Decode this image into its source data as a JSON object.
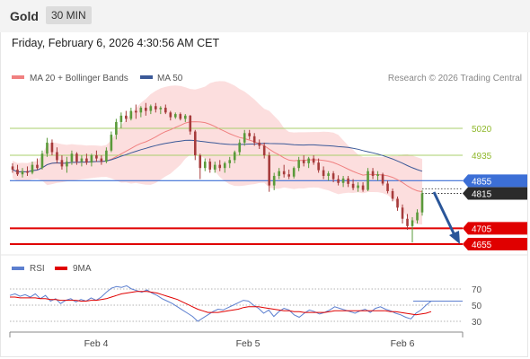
{
  "header": {
    "title": "Gold",
    "timeframe": "30 MIN"
  },
  "date_text": "Friday, February 6, 2026 4:30:56 AM CET",
  "legend": {
    "ma20": "MA 20 + Bollinger Bands",
    "ma50": "MA 50",
    "credit": "Research © 2026 Trading Central"
  },
  "colors": {
    "ma20": "#f08080",
    "bollinger": "#fbd3d3",
    "ma50": "#3b5998",
    "bull": "#5a9a3a",
    "bear": "#a63b3b",
    "resistance": "#a8cf6b",
    "support": "#e00000",
    "pivot": "#3c6fd6",
    "arrow": "#2a5699",
    "rsi": "#5c7fcf",
    "rsi_ma": "#e00000"
  },
  "chart_data": {
    "type": "candlestick",
    "y_range": [
      4590,
      5150
    ],
    "x_labels": [
      "Feb 4",
      "Feb 5",
      "Feb 6"
    ],
    "levels": [
      {
        "value": 5020,
        "label": "5020",
        "kind": "resistance"
      },
      {
        "value": 4935,
        "label": "4935",
        "kind": "resistance"
      },
      {
        "value": 4855,
        "label": "4855",
        "kind": "pivot"
      },
      {
        "value": 4815,
        "label": "4815",
        "kind": "current"
      },
      {
        "value": 4705,
        "label": "4705",
        "kind": "support"
      },
      {
        "value": 4655,
        "label": "4655",
        "kind": "support"
      }
    ],
    "ohlc": [
      [
        4900,
        4910,
        4880,
        4890
      ],
      [
        4890,
        4905,
        4870,
        4875
      ],
      [
        4875,
        4895,
        4865,
        4885
      ],
      [
        4885,
        4900,
        4870,
        4880
      ],
      [
        4880,
        4915,
        4875,
        4905
      ],
      [
        4905,
        4925,
        4890,
        4895
      ],
      [
        4895,
        4950,
        4890,
        4940
      ],
      [
        4940,
        4990,
        4930,
        4975
      ],
      [
        4975,
        4985,
        4935,
        4945
      ],
      [
        4945,
        4960,
        4910,
        4920
      ],
      [
        4920,
        4935,
        4890,
        4900
      ],
      [
        4900,
        4930,
        4880,
        4915
      ],
      [
        4915,
        4950,
        4905,
        4940
      ],
      [
        4940,
        4945,
        4905,
        4915
      ],
      [
        4915,
        4935,
        4900,
        4925
      ],
      [
        4925,
        4940,
        4905,
        4912
      ],
      [
        4912,
        4940,
        4900,
        4935
      ],
      [
        4935,
        4950,
        4915,
        4925
      ],
      [
        4925,
        4935,
        4905,
        4915
      ],
      [
        4915,
        4960,
        4910,
        4950
      ],
      [
        4950,
        5010,
        4945,
        5000
      ],
      [
        5000,
        5050,
        4985,
        5040
      ],
      [
        5040,
        5070,
        5020,
        5060
      ],
      [
        5060,
        5075,
        5040,
        5050
      ],
      [
        5050,
        5085,
        5045,
        5075
      ],
      [
        5075,
        5095,
        5050,
        5070
      ],
      [
        5070,
        5090,
        5055,
        5085
      ],
      [
        5085,
        5100,
        5060,
        5075
      ],
      [
        5075,
        5095,
        5065,
        5090
      ],
      [
        5090,
        5100,
        5070,
        5080
      ],
      [
        5080,
        5090,
        5065,
        5085
      ],
      [
        5085,
        5095,
        5065,
        5070
      ],
      [
        5070,
        5075,
        5045,
        5055
      ],
      [
        5055,
        5070,
        5050,
        5065
      ],
      [
        5065,
        5070,
        5045,
        5050
      ],
      [
        5050,
        5065,
        5040,
        5060
      ],
      [
        5060,
        5062,
        5000,
        5010
      ],
      [
        5010,
        5015,
        4920,
        4935
      ],
      [
        4935,
        4940,
        4860,
        4895
      ],
      [
        4895,
        4925,
        4885,
        4915
      ],
      [
        4915,
        4925,
        4880,
        4890
      ],
      [
        4890,
        4915,
        4880,
        4905
      ],
      [
        4905,
        4920,
        4885,
        4895
      ],
      [
        4895,
        4915,
        4880,
        4910
      ],
      [
        4910,
        4930,
        4895,
        4920
      ],
      [
        4920,
        4950,
        4910,
        4945
      ],
      [
        4945,
        4985,
        4935,
        4975
      ],
      [
        4975,
        5015,
        4965,
        5005
      ],
      [
        5005,
        5015,
        4985,
        4995
      ],
      [
        4995,
        5005,
        4965,
        4975
      ],
      [
        4975,
        4985,
        4955,
        4965
      ],
      [
        4965,
        4975,
        4925,
        4935
      ],
      [
        4935,
        4945,
        4820,
        4840
      ],
      [
        4840,
        4880,
        4825,
        4870
      ],
      [
        4870,
        4895,
        4860,
        4885
      ],
      [
        4885,
        4905,
        4865,
        4875
      ],
      [
        4875,
        4890,
        4860,
        4868
      ],
      [
        4868,
        4900,
        4862,
        4895
      ],
      [
        4895,
        4930,
        4885,
        4920
      ],
      [
        4920,
        4935,
        4900,
        4910
      ],
      [
        4910,
        4930,
        4895,
        4925
      ],
      [
        4925,
        4935,
        4905,
        4912
      ],
      [
        4912,
        4925,
        4880,
        4888
      ],
      [
        4888,
        4900,
        4860,
        4870
      ],
      [
        4870,
        4885,
        4855,
        4878
      ],
      [
        4878,
        4885,
        4850,
        4860
      ],
      [
        4860,
        4872,
        4840,
        4848
      ],
      [
        4848,
        4870,
        4835,
        4862
      ],
      [
        4862,
        4870,
        4835,
        4845
      ],
      [
        4845,
        4860,
        4825,
        4832
      ],
      [
        4832,
        4850,
        4820,
        4840
      ],
      [
        4840,
        4850,
        4820,
        4826
      ],
      [
        4826,
        4895,
        4822,
        4885
      ],
      [
        4885,
        4895,
        4860,
        4870
      ],
      [
        4870,
        4885,
        4855,
        4875
      ],
      [
        4875,
        4880,
        4840,
        4846
      ],
      [
        4846,
        4855,
        4815,
        4822
      ],
      [
        4822,
        4830,
        4790,
        4798
      ],
      [
        4798,
        4805,
        4760,
        4770
      ],
      [
        4770,
        4780,
        4720,
        4735
      ],
      [
        4735,
        4750,
        4700,
        4712
      ],
      [
        4712,
        4740,
        4660,
        4730
      ],
      [
        4730,
        4765,
        4720,
        4755
      ],
      [
        4755,
        4825,
        4745,
        4815
      ]
    ],
    "rsi_ticks": [
      70,
      50,
      30
    ],
    "rsi": [
      62,
      64,
      61,
      63,
      60,
      64,
      58,
      62,
      55,
      58,
      52,
      56,
      58,
      54,
      57,
      55,
      59,
      56,
      60,
      66,
      71,
      73,
      72,
      74,
      70,
      68,
      66,
      69,
      65,
      62,
      58,
      55,
      52,
      48,
      44,
      40,
      36,
      30,
      34,
      38,
      42,
      45,
      44,
      47,
      50,
      53,
      56,
      55,
      50,
      46,
      40,
      44,
      36,
      42,
      46,
      44,
      38,
      35,
      40,
      44,
      42,
      39,
      41,
      44,
      48,
      46,
      44,
      42,
      40,
      43,
      45,
      41,
      46,
      48,
      45,
      43,
      40,
      38,
      35,
      33,
      40,
      44,
      50,
      55
    ],
    "rsi_ma": [
      60,
      60,
      59,
      59,
      59,
      59,
      58,
      58,
      57,
      57,
      56,
      56,
      56,
      56,
      55,
      55,
      56,
      56,
      57,
      58,
      60,
      62,
      64,
      65,
      66,
      67,
      67,
      67,
      66,
      65,
      63,
      61,
      59,
      57,
      54,
      51,
      48,
      45,
      43,
      41,
      41,
      41,
      42,
      43,
      44,
      45,
      47,
      48,
      48,
      48,
      47,
      46,
      45,
      44,
      43,
      43,
      42,
      42,
      41,
      41,
      41,
      41,
      41,
      42,
      43,
      43,
      43,
      43,
      43,
      43,
      43,
      43,
      43,
      43,
      43,
      42,
      42,
      41,
      40,
      39,
      38,
      39,
      40,
      42
    ]
  },
  "rsi_legend": {
    "rsi": "RSI",
    "ma": "9MA"
  }
}
